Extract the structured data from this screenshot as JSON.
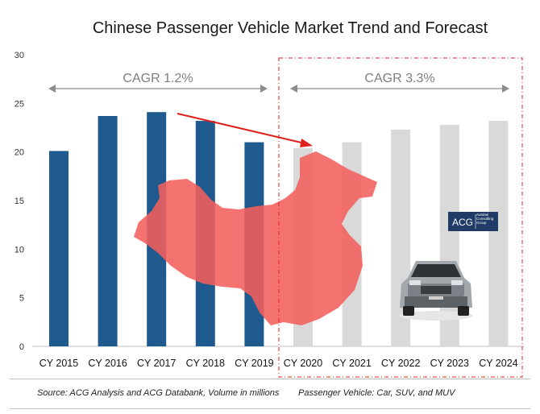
{
  "chart_data": {
    "type": "bar",
    "title": "Chinese Passenger Vehicle Market Trend and Forecast",
    "categories": [
      "CY 2015",
      "CY 2016",
      "CY 2017",
      "CY 2018",
      "CY 2019",
      "CY 2020",
      "CY 2021",
      "CY 2022",
      "CY 2023",
      "CY 2024"
    ],
    "values": [
      20.1,
      23.7,
      24.1,
      23.2,
      21.0,
      20.4,
      21.0,
      22.3,
      22.8,
      23.2
    ],
    "series_status": [
      "actual",
      "actual",
      "actual",
      "actual",
      "actual",
      "forecast",
      "forecast",
      "forecast",
      "forecast",
      "forecast"
    ],
    "ylim": [
      0,
      30
    ],
    "yticks": [
      0,
      5,
      10,
      15,
      20,
      25,
      30
    ],
    "xlabel": "",
    "ylabel": "",
    "annotations": {
      "cagr_historical": "CAGR 1.2%",
      "cagr_forecast": "CAGR 3.3%"
    }
  },
  "colors": {
    "actual": "#1f5a8e",
    "forecast": "#d9d9d9",
    "map": "#f25f5c",
    "arrow": "#e0201c",
    "dashed_box": "#e0201c",
    "cagr_text": "#7f7f7f"
  },
  "logo": {
    "abbr": "ACG",
    "name": "Autobei Consulting Group"
  },
  "footer": {
    "source": "Source: ACG Analysis and ACG Databank, Volume in millions",
    "note": "Passenger Vehicle: Car, SUV, and MUV"
  }
}
